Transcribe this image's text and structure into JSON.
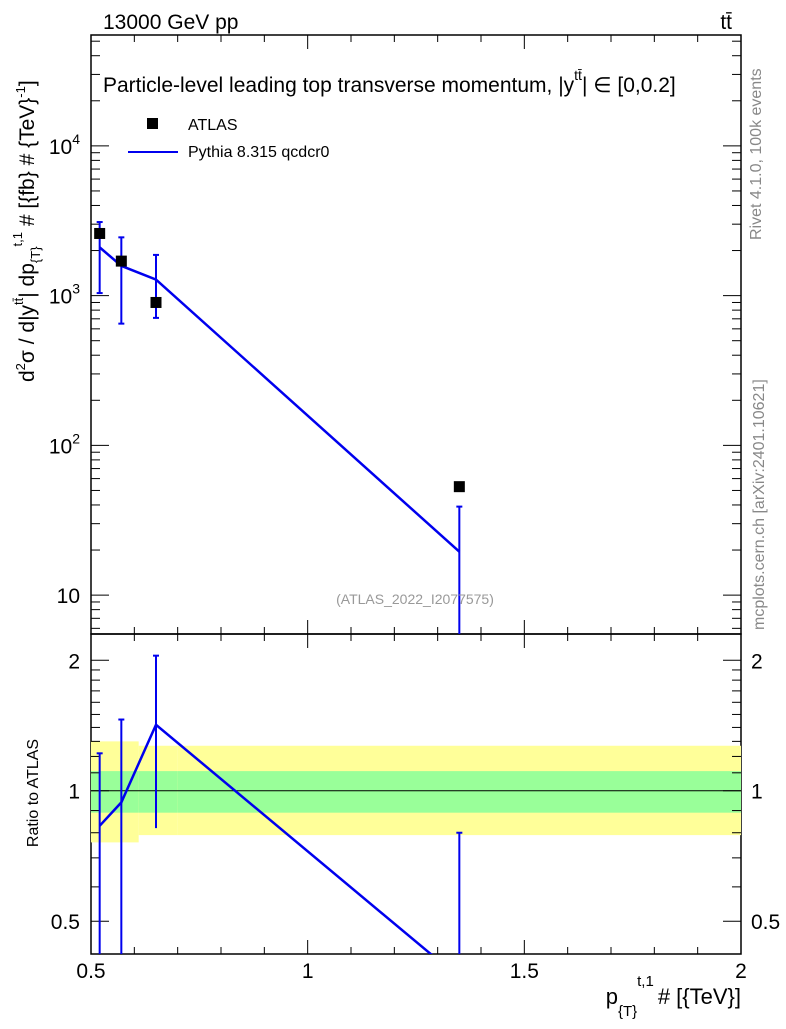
{
  "header": {
    "left_title": "13000 GeV pp",
    "right_title": "tt̄"
  },
  "side_labels": {
    "rivet": "Rivet 4.1.0,  100k events",
    "mcplots": "mcplots.cern.ch [arXiv:2401.10621]"
  },
  "colors": {
    "data": "#000000",
    "mc": "#0000ee",
    "band_inner": "#99ff99",
    "band_outer": "#ffff99",
    "watermark": "#999999"
  },
  "chart_data": {
    "type": "line",
    "title": "Particle-level leading top transverse momentum, |y^{tt̄}| ∈ [0,0.2]",
    "title_parts": {
      "main": "Particle-level leading top transverse momentum, |y",
      "sup": "tt̄",
      "tail": "| ∈ [0,0.2]"
    },
    "watermark": "(ATLAS_2022_I2077575)",
    "xlabel": "p_{T}^{t,1} # [{TeV}]",
    "xlabel_parts": {
      "p": "p",
      "sub": "{T}",
      "sup": "t,1",
      "tail": "# [{TeV}]"
    },
    "ylabel": "d²σ / d|y^{tt̄}| dp_{T}^{t,1} # [{fb} # {TeV}⁻¹]",
    "ylabel_parts": {
      "d": "d",
      "sup2": "2",
      "sigma": "σ / d|y",
      "sup_tt": "tt̄",
      "mid": "| dp",
      "sub_t": "{T}",
      "sup_t1": "t,1",
      "tail": " # [{fb} # {TeV}",
      "sup_m1": "-1",
      "close": "]"
    },
    "ratio_ylabel": "Ratio to ATLAS",
    "xlim": [
      0.5,
      2.0
    ],
    "ylim": [
      5.5,
      55000
    ],
    "yscale": "log",
    "ratio_ylim": [
      0.42,
      2.3
    ],
    "x_ticks": [
      {
        "value": 0.5,
        "label": "0.5"
      },
      {
        "value": 1.0,
        "label": "1"
      },
      {
        "value": 1.5,
        "label": "1.5"
      },
      {
        "value": 2.0,
        "label": "2"
      }
    ],
    "y_ticks": [
      {
        "value": 10,
        "base": "10",
        "exp": ""
      },
      {
        "value": 100,
        "base": "10",
        "exp": "2"
      },
      {
        "value": 1000,
        "base": "10",
        "exp": "3"
      },
      {
        "value": 10000,
        "base": "10",
        "exp": "4"
      }
    ],
    "ratio_ticks": [
      {
        "value": 0.5,
        "label": "0.5"
      },
      {
        "value": 1,
        "label": "1"
      },
      {
        "value": 2,
        "label": "2"
      }
    ],
    "legend": {
      "position": "top-left",
      "entries": [
        "ATLAS",
        "Pythia 8.315 qcdcr0"
      ]
    },
    "series": [
      {
        "name": "ATLAS",
        "style": "markers",
        "x": [
          0.52,
          0.57,
          0.65,
          1.35
        ],
        "y": [
          2600,
          1700,
          900,
          53
        ]
      },
      {
        "name": "Pythia 8.315 qcdcr0",
        "style": "line",
        "x": [
          0.52,
          0.57,
          0.65,
          1.35
        ],
        "y": [
          2100,
          1580,
          1280,
          19.5
        ],
        "err_low": [
          1040,
          650,
          710,
          0.5
        ],
        "err_high": [
          3100,
          2450,
          1870,
          39
        ]
      }
    ],
    "ratio": {
      "x": [
        0.52,
        0.57,
        0.65,
        1.35
      ],
      "y": [
        0.83,
        0.94,
        1.42,
        0.37
      ],
      "err_low": [
        0.3,
        0.3,
        0.82,
        0.3
      ],
      "err_high": [
        1.22,
        1.46,
        2.05,
        0.8
      ],
      "bands": [
        {
          "x0": 0.5,
          "x1": 0.545,
          "inner": [
            0.89,
            1.11
          ],
          "outer": [
            0.76,
            1.3
          ]
        },
        {
          "x0": 0.545,
          "x1": 0.61,
          "inner": [
            0.89,
            1.11
          ],
          "outer": [
            0.76,
            1.3
          ]
        },
        {
          "x0": 0.61,
          "x1": 0.7,
          "inner": [
            0.89,
            1.11
          ],
          "outer": [
            0.79,
            1.27
          ]
        },
        {
          "x0": 0.7,
          "x1": 2.0,
          "inner": [
            0.89,
            1.11
          ],
          "outer": [
            0.79,
            1.27
          ]
        }
      ]
    }
  }
}
